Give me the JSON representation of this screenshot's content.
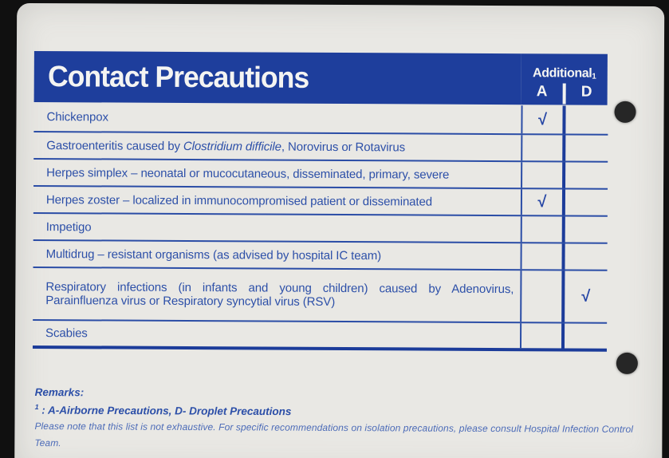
{
  "card": {
    "header": {
      "title": "Contact Precautions",
      "additional_label": "Additional",
      "additional_superscript": "1",
      "col_a": "A",
      "col_d": "D"
    },
    "table": {
      "rows": [
        {
          "text": "Chickenpox",
          "a": "√",
          "d": ""
        },
        {
          "pre": "Gastroenteritis caused by ",
          "italic": "Clostridium difficile",
          "post": ", Norovirus or Rotavirus",
          "a": "",
          "d": ""
        },
        {
          "text": "Herpes simplex – neonatal or mucocutaneous, disseminated, primary, severe",
          "a": "",
          "d": ""
        },
        {
          "text": "Herpes zoster – localized in immunocompromised patient or disseminated",
          "a": "√",
          "d": ""
        },
        {
          "text": "Impetigo",
          "a": "",
          "d": ""
        },
        {
          "text": "Multidrug – resistant organisms (as advised by hospital IC team)",
          "a": "",
          "d": ""
        },
        {
          "line1": "Respiratory infections (in infants and young children) caused by Adenovirus,",
          "line2": "Parainfluenza virus or Respiratory syncytial virus (RSV)",
          "a": "",
          "d": "√"
        },
        {
          "text": "Scabies",
          "a": "",
          "d": ""
        }
      ]
    },
    "footer": {
      "remarks_label": "Remarks:",
      "footnote_superscript": "1",
      "footnote_text": " : A-Airborne Precautions, D- Droplet Precautions",
      "disclaimer": "Please note that this list is not exhaustive. For specific recommendations on isolation precautions, please consult Hospital Infection Control Team."
    },
    "colors": {
      "header_blue": "#1e3e9c",
      "line_blue": "#2b4da6",
      "text_blue": "#2c4fa8",
      "card_background": "#e9e8e4",
      "scan_background": "#101010",
      "hole_punch": "#262626"
    }
  }
}
